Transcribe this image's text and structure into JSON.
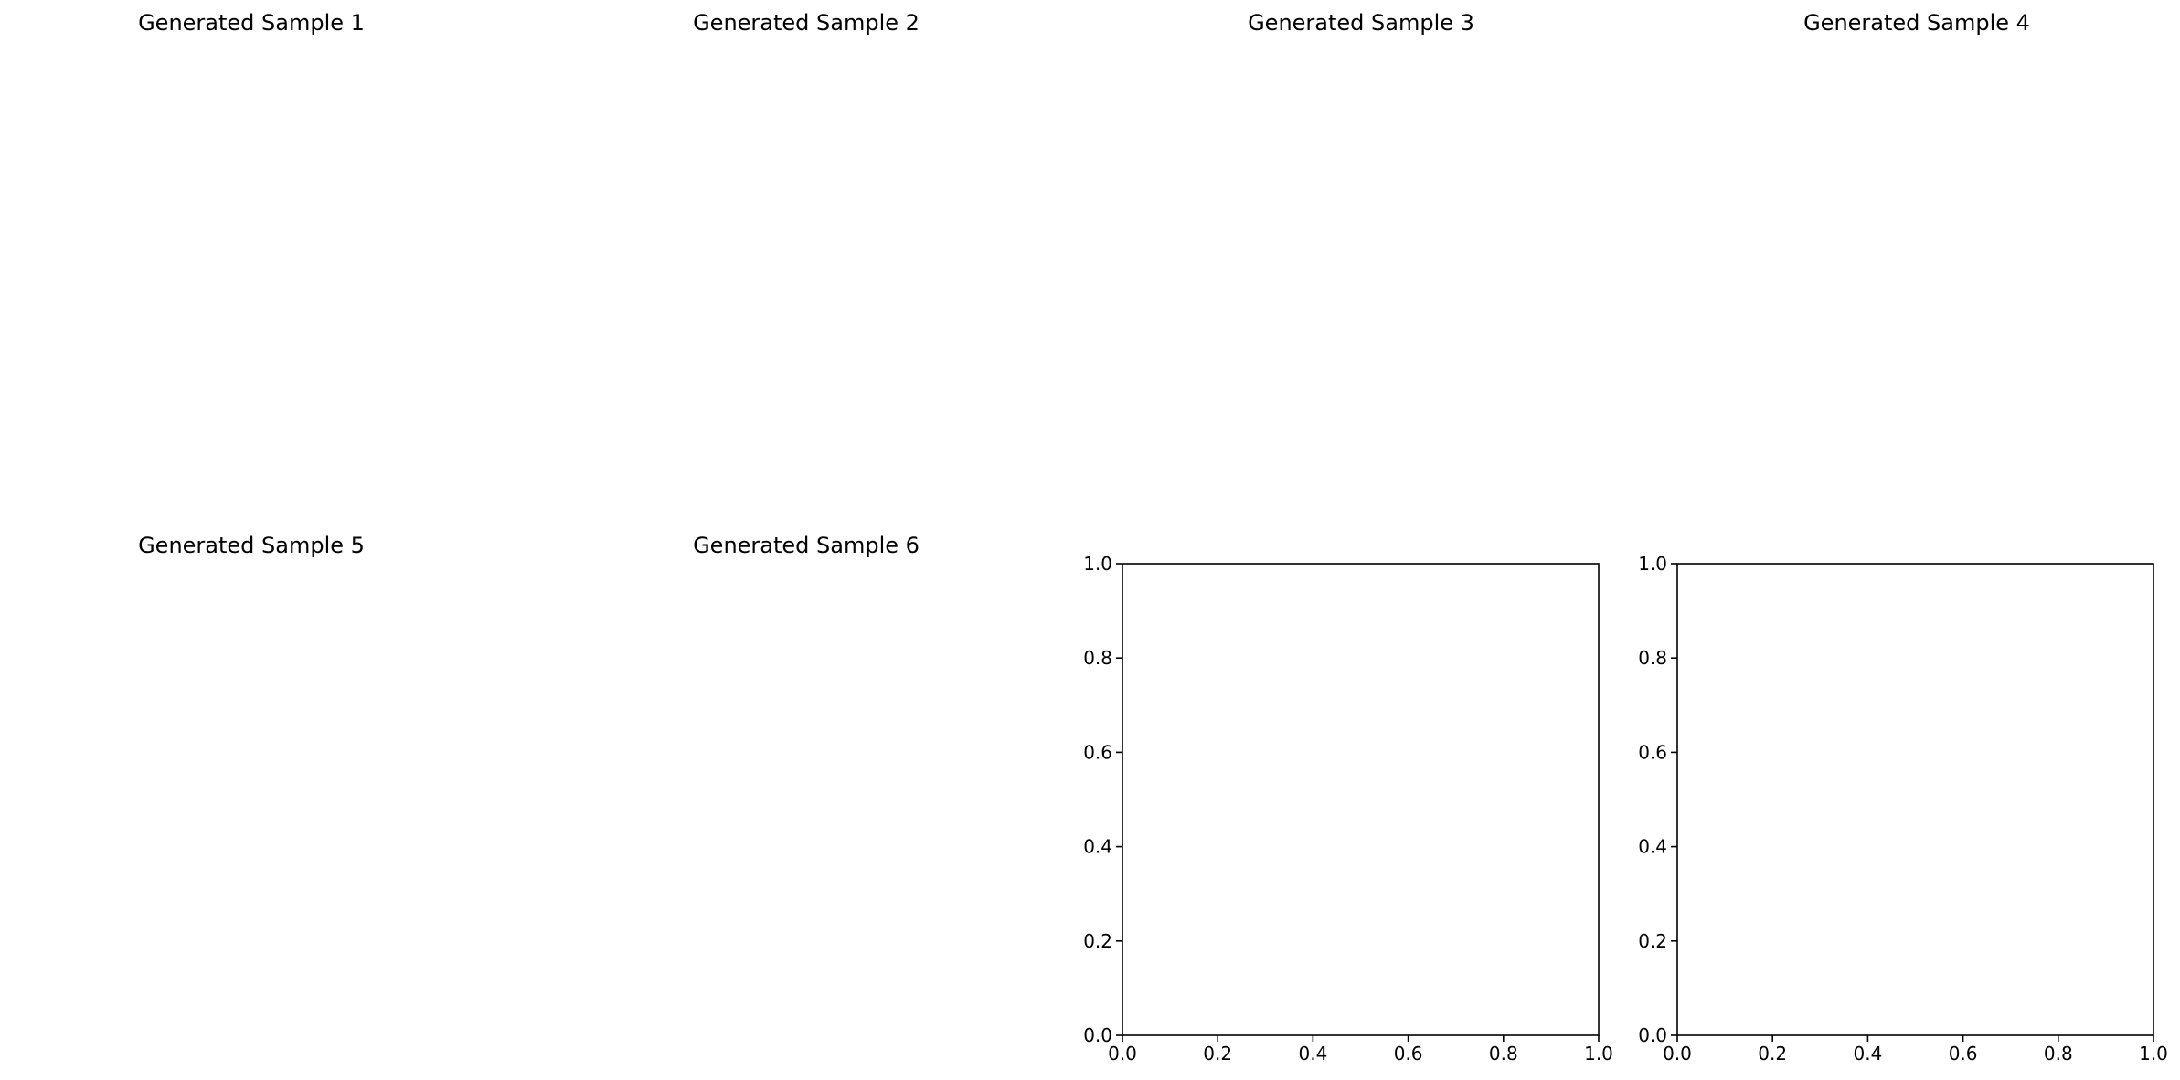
{
  "chart_data": [
    {
      "type": "image",
      "title": "Generated Sample 1"
    },
    {
      "type": "image",
      "title": "Generated Sample 2"
    },
    {
      "type": "image",
      "title": "Generated Sample 3"
    },
    {
      "type": "image",
      "title": "Generated Sample 4"
    },
    {
      "type": "image",
      "title": "Generated Sample 5"
    },
    {
      "type": "image",
      "title": "Generated Sample 6"
    },
    {
      "type": "scatter",
      "title": "",
      "xlabel": "",
      "ylabel": "",
      "xlim": [
        0.0,
        1.0
      ],
      "ylim": [
        0.0,
        1.0
      ],
      "xticks": [
        "0.0",
        "0.2",
        "0.4",
        "0.6",
        "0.8",
        "1.0"
      ],
      "yticks": [
        "0.0",
        "0.2",
        "0.4",
        "0.6",
        "0.8",
        "1.0"
      ],
      "series": [],
      "grid": false
    },
    {
      "type": "scatter",
      "title": "",
      "xlabel": "",
      "ylabel": "",
      "xlim": [
        0.0,
        1.0
      ],
      "ylim": [
        0.0,
        1.0
      ],
      "xticks": [
        "0.0",
        "0.2",
        "0.4",
        "0.6",
        "0.8",
        "1.0"
      ],
      "yticks": [
        "0.0",
        "0.2",
        "0.4",
        "0.6",
        "0.8",
        "1.0"
      ],
      "series": [],
      "grid": false
    }
  ]
}
